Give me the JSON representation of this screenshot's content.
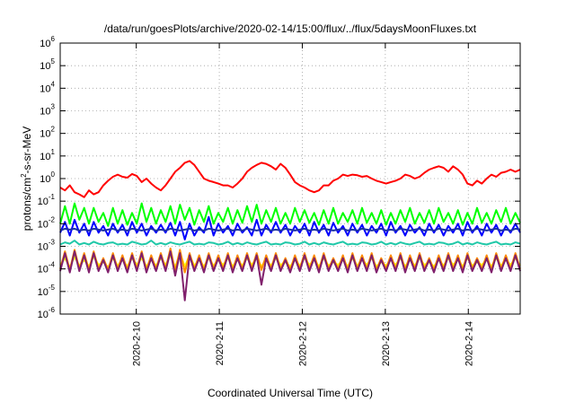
{
  "chart_data": {
    "type": "line",
    "title": "/data/run/goesPlots/archive/2020-02-14/15:00/flux/../flux/5daysMoonFluxes.txt",
    "xlabel": "Coordinated Universal Time (UTC)",
    "ylabel": {
      "base": "protons/cm",
      "sup": "2",
      "rest": "-s-sr-MeV"
    },
    "y_scale": "log",
    "ylim": [
      1e-06,
      1000000.0
    ],
    "y_ticks": [
      {
        "value": 1e-06,
        "base": "10",
        "exp": "-6"
      },
      {
        "value": 1e-05,
        "base": "10",
        "exp": "-5"
      },
      {
        "value": 0.0001,
        "base": "10",
        "exp": "-4"
      },
      {
        "value": 0.001,
        "base": "10",
        "exp": "-3"
      },
      {
        "value": 0.01,
        "base": "10",
        "exp": "-2"
      },
      {
        "value": 0.1,
        "base": "10",
        "exp": "-1"
      },
      {
        "value": 1,
        "base": "10",
        "exp": "0"
      },
      {
        "value": 10.0,
        "base": "10",
        "exp": "1"
      },
      {
        "value": 100.0,
        "base": "10",
        "exp": "2"
      },
      {
        "value": 1000.0,
        "base": "10",
        "exp": "3"
      },
      {
        "value": 10000.0,
        "base": "10",
        "exp": "4"
      },
      {
        "value": 100000.0,
        "base": "10",
        "exp": "5"
      },
      {
        "value": 1000000.0,
        "base": "10",
        "exp": "6"
      }
    ],
    "xlim": [
      "2020-02-09 02:00",
      "2020-02-14 15:00"
    ],
    "x_ticks": [
      {
        "label": "2020-2-10",
        "value": "2020-02-10 00:00"
      },
      {
        "label": "2020-2-11",
        "value": "2020-02-11 00:00"
      },
      {
        "label": "2020-2-12",
        "value": "2020-02-12 00:00"
      },
      {
        "label": "2020-2-13",
        "value": "2020-02-13 00:00"
      },
      {
        "label": "2020-2-14",
        "value": "2020-02-14 00:00"
      }
    ],
    "grid": true,
    "legend": "none",
    "series": [
      {
        "color": "#ff0000",
        "values": [
          0.4,
          0.3,
          0.5,
          0.25,
          0.2,
          0.15,
          0.3,
          0.2,
          0.25,
          0.5,
          0.8,
          1.2,
          1.5,
          1.2,
          1.1,
          1.6,
          1.3,
          0.7,
          1.0,
          0.6,
          0.4,
          0.3,
          0.5,
          1.0,
          2.0,
          3.0,
          5.0,
          6.0,
          4.0,
          2.0,
          1.0,
          0.8,
          0.7,
          0.6,
          0.5,
          0.5,
          0.4,
          0.6,
          1.0,
          2.0,
          3.0,
          4.0,
          5.0,
          4.5,
          3.5,
          2.5,
          4.5,
          3.0,
          1.5,
          0.7,
          0.5,
          0.4,
          0.3,
          0.25,
          0.3,
          0.5,
          0.5,
          0.8,
          1.0,
          1.5,
          1.3,
          1.5,
          1.4,
          1.2,
          1.3,
          1.0,
          0.8,
          0.7,
          0.6,
          0.7,
          0.8,
          1.0,
          1.5,
          1.3,
          1.0,
          1.2,
          1.8,
          2.5,
          3.0,
          3.5,
          3.0,
          2.0,
          3.5,
          2.5,
          1.5,
          0.6,
          0.5,
          0.8,
          0.6,
          1.0,
          1.5,
          1.2,
          1.8,
          2.0,
          2.5,
          2.0,
          2.5
        ]
      },
      {
        "color": "#00ff00",
        "values": [
          0.01,
          0.06,
          0.01,
          0.08,
          0.015,
          0.05,
          0.01,
          0.05,
          0.012,
          0.03,
          0.008,
          0.05,
          0.01,
          0.04,
          0.009,
          0.03,
          0.01,
          0.08,
          0.012,
          0.05,
          0.01,
          0.04,
          0.012,
          0.06,
          0.01,
          0.07,
          0.015,
          0.05,
          0.009,
          0.04,
          0.012,
          0.06,
          0.01,
          0.03,
          0.012,
          0.05,
          0.01,
          0.04,
          0.011,
          0.06,
          0.012,
          0.07,
          0.01,
          0.04,
          0.012,
          0.05,
          0.01,
          0.03,
          0.01,
          0.05,
          0.012,
          0.04,
          0.011,
          0.03,
          0.009,
          0.04,
          0.01,
          0.05,
          0.01,
          0.03,
          0.012,
          0.04,
          0.01,
          0.05,
          0.011,
          0.03,
          0.01,
          0.04,
          0.009,
          0.03,
          0.01,
          0.04,
          0.012,
          0.05,
          0.01,
          0.03,
          0.011,
          0.04,
          0.01,
          0.05,
          0.012,
          0.03,
          0.01,
          0.04,
          0.009,
          0.03,
          0.01,
          0.05,
          0.011,
          0.03,
          0.01,
          0.04,
          0.012,
          0.05,
          0.01,
          0.03,
          0.011
        ]
      },
      {
        "color": "#0000ff",
        "values": [
          0.004,
          0.012,
          0.003,
          0.015,
          0.004,
          0.01,
          0.003,
          0.012,
          0.004,
          0.008,
          0.003,
          0.01,
          0.004,
          0.009,
          0.003,
          0.012,
          0.004,
          0.01,
          0.003,
          0.008,
          0.004,
          0.009,
          0.004,
          0.011,
          0.003,
          0.012,
          0.002,
          0.01,
          0.003,
          0.007,
          0.004,
          0.02,
          0.003,
          0.01,
          0.004,
          0.008,
          0.003,
          0.01,
          0.004,
          0.007,
          0.003,
          0.015,
          0.003,
          0.009,
          0.004,
          0.012,
          0.004,
          0.009,
          0.003,
          0.008,
          0.004,
          0.01,
          0.003,
          0.012,
          0.004,
          0.009,
          0.003,
          0.011,
          0.004,
          0.008,
          0.003,
          0.01,
          0.004,
          0.009,
          0.003,
          0.008,
          0.004,
          0.01,
          0.003,
          0.012,
          0.004,
          0.008,
          0.003,
          0.009,
          0.004,
          0.007,
          0.003,
          0.01,
          0.004,
          0.009,
          0.003,
          0.008,
          0.004,
          0.01,
          0.003,
          0.012,
          0.004,
          0.008,
          0.003,
          0.01,
          0.004,
          0.009,
          0.003,
          0.008,
          0.004,
          0.01,
          0.004
        ]
      },
      {
        "color": "#1c30a4",
        "values": [
          0.005,
          0.006,
          0.0055,
          0.006,
          0.005,
          0.0055,
          0.005,
          0.006,
          0.0055,
          0.005,
          0.0055,
          0.006,
          0.005,
          0.0055,
          0.005,
          0.006,
          0.0055,
          0.005,
          0.0055,
          0.006,
          0.005,
          0.0055,
          0.005,
          0.006,
          0.0055,
          0.005,
          0.0055,
          0.006,
          0.005,
          0.0055,
          0.005,
          0.006,
          0.0055,
          0.005,
          0.0055,
          0.006,
          0.005,
          0.0055,
          0.005,
          0.006,
          0.0055,
          0.005,
          0.0055,
          0.006,
          0.005,
          0.0055,
          0.005,
          0.006,
          0.0055,
          0.005,
          0.0055,
          0.006,
          0.005,
          0.0055,
          0.005,
          0.006,
          0.0055,
          0.005,
          0.0055,
          0.006,
          0.005,
          0.0055,
          0.005,
          0.006,
          0.0055,
          0.005,
          0.0055,
          0.006,
          0.005,
          0.0055,
          0.005,
          0.006,
          0.0055,
          0.005,
          0.0055,
          0.006,
          0.005,
          0.0055,
          0.005,
          0.006,
          0.0055,
          0.005,
          0.0055,
          0.006,
          0.005,
          0.0055,
          0.005,
          0.006,
          0.0055,
          0.005,
          0.0055,
          0.006,
          0.005,
          0.0055,
          0.005,
          0.006,
          0.0055
        ]
      },
      {
        "color": "#20c8a8",
        "values": [
          0.0012,
          0.0015,
          0.0013,
          0.0018,
          0.0012,
          0.0014,
          0.0012,
          0.0016,
          0.0013,
          0.0012,
          0.0014,
          0.0015,
          0.0012,
          0.0013,
          0.0012,
          0.0016,
          0.0014,
          0.0012,
          0.0013,
          0.0018,
          0.0012,
          0.0014,
          0.0012,
          0.0015,
          0.0013,
          0.0012,
          0.0014,
          0.0016,
          0.0012,
          0.0013,
          0.0012,
          0.0015,
          0.0014,
          0.0012,
          0.0013,
          0.0016,
          0.0012,
          0.0014,
          0.0012,
          0.0015,
          0.0013,
          0.0012,
          0.0014,
          0.0016,
          0.0012,
          0.0013,
          0.0012,
          0.0015,
          0.0014,
          0.0012,
          0.0013,
          0.0016,
          0.0012,
          0.0014,
          0.0012,
          0.0015,
          0.0013,
          0.0012,
          0.0014,
          0.0016,
          0.0012,
          0.0013,
          0.0012,
          0.0015,
          0.0014,
          0.0012,
          0.0013,
          0.0016,
          0.0012,
          0.0014,
          0.0012,
          0.0015,
          0.0013,
          0.0012,
          0.0014,
          0.0016,
          0.0012,
          0.0013,
          0.0012,
          0.0015,
          0.0014,
          0.0012,
          0.0013,
          0.0016,
          0.0012,
          0.0014,
          0.0012,
          0.0015,
          0.0013,
          0.0012,
          0.0014,
          0.0016,
          0.0012,
          0.0013,
          0.0012,
          0.0015,
          0.0013
        ]
      },
      {
        "color": "#ffff00",
        "values": [
          0.00015,
          0.0003,
          0.00012,
          0.00035,
          0.00014,
          0.00025,
          0.00013,
          0.00035,
          0.00015,
          0.0002,
          0.00012,
          0.0003,
          0.00014,
          0.00025,
          0.00013,
          0.0003,
          0.00015,
          0.0003,
          0.00013,
          0.00025,
          0.00014,
          0.0003,
          0.00015,
          0.0004,
          0.00012,
          0.0005,
          0.00013,
          0.0004,
          0.00014,
          0.00025,
          0.00013,
          0.0003,
          0.00014,
          0.00025,
          0.00015,
          0.0003,
          0.00013,
          0.00025,
          0.00014,
          0.0003,
          0.00015,
          0.0003,
          0.00013,
          0.00025,
          0.00014,
          0.0003,
          0.00015,
          0.0002,
          0.00013,
          0.00025,
          0.00014,
          0.0003,
          0.00015,
          0.00025,
          0.00013,
          0.0003,
          0.00014,
          0.0002,
          0.00015,
          0.00025,
          0.00013,
          0.0003,
          0.00014,
          0.00025,
          0.00015,
          0.0003,
          0.00013,
          0.0002,
          0.00014,
          0.00025,
          0.00015,
          0.0003,
          0.00013,
          0.00025,
          0.00014,
          0.0003,
          0.00015,
          0.0002,
          0.00013,
          0.00025,
          0.00014,
          0.0003,
          0.00015,
          0.00025,
          0.00013,
          0.0003,
          0.00014,
          0.0002,
          0.00015,
          0.00025,
          0.00013,
          0.0003,
          0.00014,
          0.00025,
          0.00015,
          0.0003,
          0.00014
        ]
      },
      {
        "color": "#ff8c00",
        "values": [
          0.0001,
          0.0006,
          9e-05,
          0.0007,
          0.0001,
          0.0005,
          9e-05,
          0.0006,
          0.0001,
          0.0003,
          9e-05,
          0.0005,
          0.0001,
          0.0004,
          9e-05,
          0.0005,
          0.0001,
          0.0006,
          9e-05,
          0.0004,
          0.0001,
          0.0005,
          0.0001,
          0.0008,
          8e-05,
          0.0007,
          7e-05,
          0.0005,
          0.0001,
          0.0004,
          9e-05,
          0.0005,
          0.0001,
          0.0004,
          0.0001,
          0.0005,
          9e-05,
          0.0004,
          0.0001,
          0.0005,
          0.0001,
          0.0005,
          9e-05,
          0.0004,
          0.0001,
          0.0005,
          0.0001,
          0.0003,
          9e-05,
          0.0004,
          0.0001,
          0.0005,
          0.0001,
          0.0004,
          9e-05,
          0.0005,
          0.0001,
          0.0003,
          0.0001,
          0.0004,
          9e-05,
          0.0005,
          0.0001,
          0.0004,
          0.0001,
          0.0005,
          9e-05,
          0.0003,
          0.0001,
          0.0004,
          0.0001,
          0.0005,
          9e-05,
          0.0004,
          0.0001,
          0.0005,
          0.0001,
          0.0003,
          9e-05,
          0.0004,
          0.0001,
          0.0005,
          0.0001,
          0.0004,
          9e-05,
          0.0005,
          0.0001,
          0.0003,
          0.0001,
          0.0004,
          9e-05,
          0.0005,
          0.0001,
          0.0004,
          0.0001,
          0.0005,
          0.0001
        ]
      },
      {
        "color": "#80206c",
        "values": [
          8e-05,
          0.0005,
          7e-05,
          0.0006,
          8e-05,
          0.0004,
          7e-05,
          0.0005,
          8e-05,
          0.00025,
          7e-05,
          0.0004,
          8e-05,
          0.0003,
          7e-05,
          0.0004,
          8e-05,
          0.0005,
          7e-05,
          0.0003,
          8e-05,
          0.0004,
          8e-05,
          0.0006,
          5e-05,
          0.0005,
          4e-06,
          0.0004,
          8e-05,
          0.0003,
          7e-05,
          0.0004,
          8e-05,
          0.0003,
          8e-05,
          0.0004,
          7e-05,
          0.0003,
          8e-05,
          0.0004,
          8e-05,
          0.0004,
          2e-05,
          0.0003,
          8e-05,
          0.0004,
          8e-05,
          0.00025,
          7e-05,
          0.0003,
          8e-05,
          0.0004,
          8e-05,
          0.0003,
          7e-05,
          0.0004,
          8e-05,
          0.00025,
          8e-05,
          0.0003,
          7e-05,
          0.0004,
          8e-05,
          0.0003,
          8e-05,
          0.0004,
          7e-05,
          0.00025,
          8e-05,
          0.0003,
          8e-05,
          0.0004,
          7e-05,
          0.0003,
          8e-05,
          0.0004,
          8e-05,
          0.00025,
          7e-05,
          0.0003,
          8e-05,
          0.0004,
          8e-05,
          0.0003,
          7e-05,
          0.0004,
          8e-05,
          0.00025,
          8e-05,
          0.0003,
          7e-05,
          0.0004,
          8e-05,
          0.0003,
          8e-05,
          0.0004,
          8e-05
        ]
      }
    ]
  }
}
